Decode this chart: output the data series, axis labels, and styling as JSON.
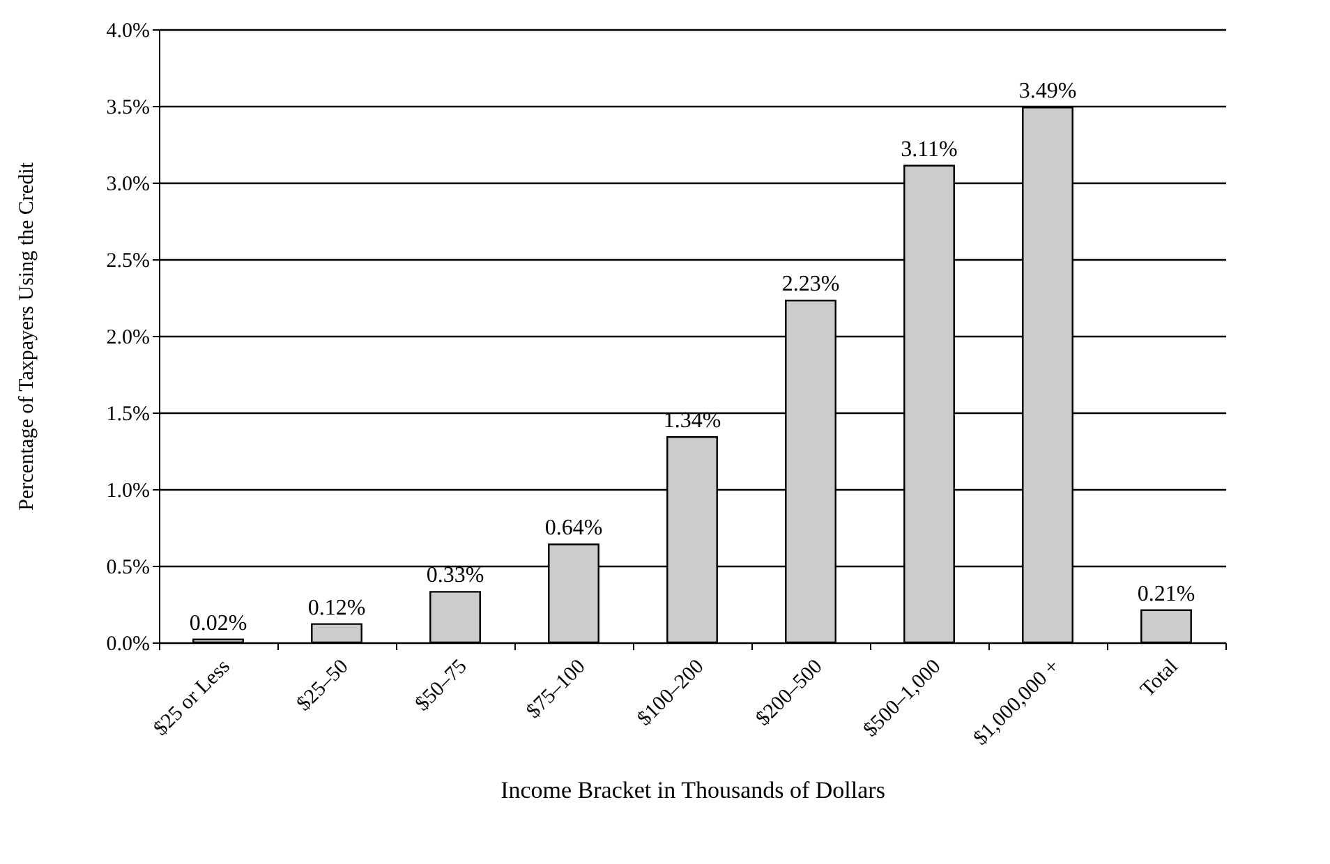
{
  "chart_data": {
    "type": "bar",
    "xlabel": "Income Bracket in Thousands of Dollars",
    "ylabel": "Percentage of Taxpayers Using the Credit",
    "categories": [
      "$25 or Less",
      "$25–50",
      "$50–75",
      "$75–100",
      "$100–200",
      "$200–500",
      "$500–1,000",
      "$1,000,000 +",
      "Total"
    ],
    "values": [
      0.02,
      0.12,
      0.33,
      0.64,
      1.34,
      2.23,
      3.11,
      3.49,
      0.21
    ],
    "color": "#cccccc",
    "value_labels": [
      "0.02%",
      "0.12%",
      "0.33%",
      "0.64%",
      "1.34%",
      "2.23%",
      "3.11%",
      "3.49%",
      "0.21%"
    ],
    "ylim": [
      0,
      4
    ],
    "yticks": [
      {
        "value": 0,
        "label": "0.0%"
      },
      {
        "value": 0.5,
        "label": "0.5%"
      },
      {
        "value": 1,
        "label": "1.0%"
      },
      {
        "value": 1.5,
        "label": "1.5%"
      },
      {
        "value": 2,
        "label": "2.0%"
      },
      {
        "value": 2.5,
        "label": "2.5%"
      },
      {
        "value": 3,
        "label": "3.0%"
      },
      {
        "value": 3.5,
        "label": "3.5%"
      },
      {
        "value": 4,
        "label": "4.0%"
      }
    ],
    "grid": "y"
  }
}
